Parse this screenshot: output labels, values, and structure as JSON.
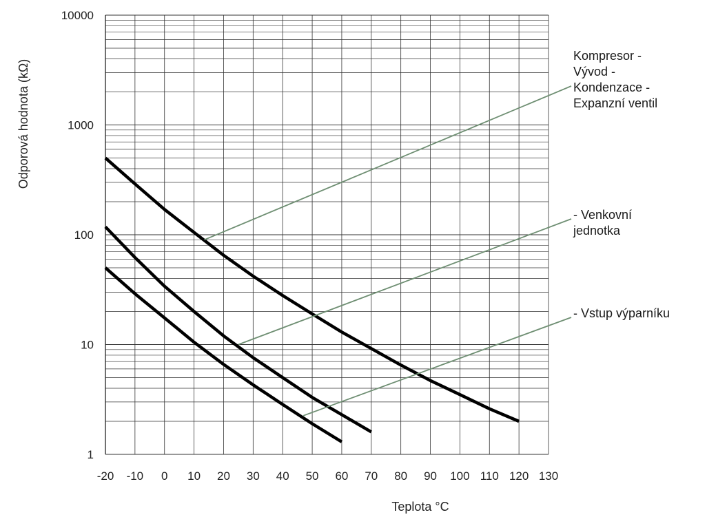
{
  "chart_data": {
    "type": "line",
    "title": "",
    "xlabel": "Teplota °C",
    "ylabel": "Odporová hodnota (kΩ)",
    "x_scale": "linear",
    "y_scale": "log",
    "xlim": [
      -20,
      130
    ],
    "ylim": [
      1,
      10000
    ],
    "x_ticks": [
      "-20",
      "-10",
      "0",
      "10",
      "20",
      "30",
      "40",
      "50",
      "60",
      "70",
      "80",
      "90",
      "100",
      "110",
      "120",
      "130"
    ],
    "y_ticks": [
      "1",
      "10",
      "100",
      "1000",
      "10000"
    ],
    "grid": true,
    "series": [
      {
        "x": [
          -20,
          -10,
          0,
          10,
          20,
          30,
          40,
          50,
          60,
          70,
          80,
          90,
          100,
          110,
          120
        ],
        "y": [
          500,
          290,
          170,
          105,
          65,
          42,
          28,
          19,
          13,
          9.2,
          6.5,
          4.7,
          3.5,
          2.6,
          2.0
        ]
      },
      {
        "x": [
          -20,
          -10,
          0,
          10,
          20,
          30,
          40,
          50,
          60,
          70
        ],
        "y": [
          118,
          62,
          34,
          20,
          12,
          7.6,
          5.0,
          3.3,
          2.3,
          1.6
        ]
      },
      {
        "x": [
          -20,
          -10,
          0,
          10,
          20,
          30,
          40,
          50,
          60
        ],
        "y": [
          50,
          29,
          17.5,
          10.5,
          6.6,
          4.3,
          2.85,
          1.9,
          1.3
        ]
      }
    ],
    "annotations": [
      {
        "text": [
          "Kompresor -",
          "Vývod -",
          "Kondenzace -",
          "Expanzní ventil"
        ],
        "points_to": [
          13.5,
          90
        ]
      },
      {
        "text": [
          "- Venkovní",
          "jednotka"
        ],
        "points_to": [
          25,
          10
        ]
      },
      {
        "text": [
          "- Vstup výparníku"
        ],
        "points_to": [
          47,
          2.25
        ]
      }
    ],
    "colors": {
      "curve": "#000000",
      "grid": "#333333",
      "leader": "#6f8f73"
    }
  }
}
